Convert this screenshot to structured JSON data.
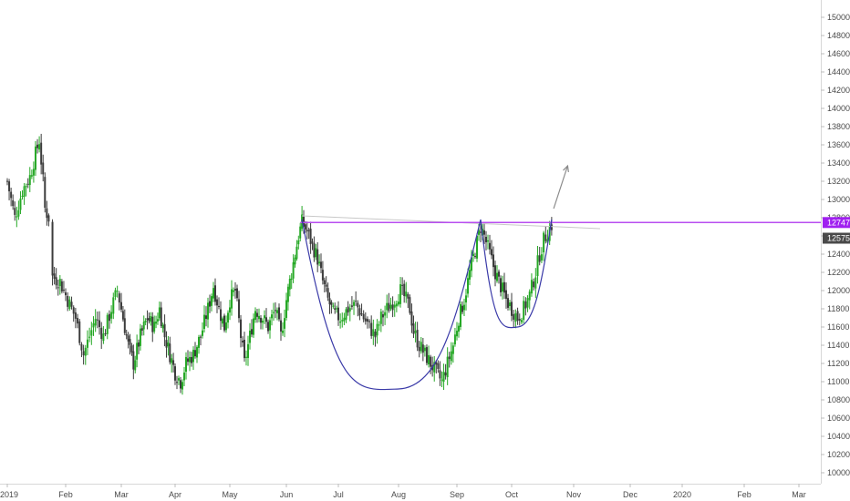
{
  "chart_data": {
    "type": "candlestick",
    "symbol": "",
    "ylim": [
      9800,
      15200
    ],
    "y_ticks": [
      "15000",
      "14800",
      "14600",
      "14400",
      "14200",
      "14000",
      "13800",
      "13600",
      "13400",
      "13200",
      "13000",
      "12800",
      "12600",
      "12400",
      "12200",
      "12000",
      "11800",
      "11600",
      "11400",
      "11200",
      "11000",
      "10800",
      "10600",
      "10400",
      "10200",
      "10000"
    ],
    "x_labels": [
      {
        "label": "2019",
        "t": 0
      },
      {
        "label": "Feb",
        "t": 31
      },
      {
        "label": "Mar",
        "t": 59
      },
      {
        "label": "Apr",
        "t": 90
      },
      {
        "label": "May",
        "t": 120
      },
      {
        "label": "Jun",
        "t": 151
      },
      {
        "label": "Jul",
        "t": 181
      },
      {
        "label": "Aug",
        "t": 212
      },
      {
        "label": "Sep",
        "t": 243
      },
      {
        "label": "Oct",
        "t": 273
      },
      {
        "label": "Nov",
        "t": 304
      },
      {
        "label": "Dec",
        "t": 334
      },
      {
        "label": "2020",
        "t": 365
      },
      {
        "label": "Feb",
        "t": 396
      },
      {
        "label": "Mar",
        "t": 424
      }
    ],
    "x_range": [
      0,
      437
    ],
    "price_path": [
      [
        0,
        13200
      ],
      [
        4,
        12800
      ],
      [
        8,
        13100
      ],
      [
        12,
        13250
      ],
      [
        15,
        13500
      ],
      [
        17,
        13650
      ],
      [
        19,
        13200
      ],
      [
        20,
        12900
      ],
      [
        22,
        12800
      ],
      [
        24,
        12150
      ],
      [
        28,
        12100
      ],
      [
        32,
        11900
      ],
      [
        36,
        11700
      ],
      [
        40,
        11300
      ],
      [
        43,
        11500
      ],
      [
        46,
        11700
      ],
      [
        50,
        11500
      ],
      [
        54,
        11800
      ],
      [
        57,
        12000
      ],
      [
        60,
        11700
      ],
      [
        63,
        11400
      ],
      [
        66,
        11200
      ],
      [
        70,
        11500
      ],
      [
        74,
        11700
      ],
      [
        78,
        11600
      ],
      [
        81,
        11800
      ],
      [
        84,
        11500
      ],
      [
        87,
        11300
      ],
      [
        90,
        11100
      ],
      [
        93,
        11000
      ],
      [
        96,
        11200
      ],
      [
        100,
        11300
      ],
      [
        104,
        11500
      ],
      [
        108,
        11800
      ],
      [
        111,
        12050
      ],
      [
        114,
        11800
      ],
      [
        117,
        11600
      ],
      [
        120,
        11900
      ],
      [
        123,
        12000
      ],
      [
        126,
        11500
      ],
      [
        128,
        11200
      ],
      [
        131,
        11500
      ],
      [
        134,
        11800
      ],
      [
        138,
        11700
      ],
      [
        141,
        11600
      ],
      [
        145,
        11800
      ],
      [
        148,
        11500
      ],
      [
        151,
        11900
      ],
      [
        153,
        12100
      ],
      [
        156,
        12400
      ],
      [
        158,
        12600
      ],
      [
        160,
        12750
      ],
      [
        163,
        12650
      ],
      [
        166,
        12500
      ],
      [
        169,
        12350
      ],
      [
        172,
        12100
      ],
      [
        175,
        11900
      ],
      [
        178,
        11750
      ],
      [
        182,
        11700
      ],
      [
        186,
        11800
      ],
      [
        190,
        11850
      ],
      [
        194,
        11700
      ],
      [
        197,
        11600
      ],
      [
        200,
        11500
      ],
      [
        203,
        11700
      ],
      [
        206,
        11800
      ],
      [
        210,
        11900
      ],
      [
        213,
        12000
      ],
      [
        216,
        11900
      ],
      [
        218,
        11800
      ],
      [
        220,
        11550
      ],
      [
        223,
        11400
      ],
      [
        226,
        11300
      ],
      [
        229,
        11200
      ],
      [
        232,
        11100
      ],
      [
        235,
        11000
      ],
      [
        238,
        11200
      ],
      [
        241,
        11400
      ],
      [
        244,
        11700
      ],
      [
        247,
        11900
      ],
      [
        250,
        12200
      ],
      [
        253,
        12450
      ],
      [
        256,
        12700
      ],
      [
        258,
        12600
      ],
      [
        261,
        12400
      ],
      [
        264,
        12200
      ],
      [
        267,
        12050
      ],
      [
        270,
        11900
      ],
      [
        273,
        11800
      ],
      [
        276,
        11700
      ],
      [
        279,
        11800
      ],
      [
        282,
        11950
      ],
      [
        285,
        12200
      ],
      [
        287,
        12400
      ],
      [
        289,
        12550
      ],
      [
        291,
        12650
      ],
      [
        293,
        12720
      ]
    ],
    "resistance_level": 12747,
    "resistance_label": "12747",
    "last_price": 12575,
    "last_price_label": "12575",
    "trend_line": {
      "t1": 160,
      "p1": 12820,
      "t2": 318,
      "p2": 12680
    },
    "cup": {
      "t_start": 160,
      "t_end": 256,
      "t_bottom": 212,
      "top": 12780,
      "bottom": 10920
    },
    "handle": {
      "t_start": 256,
      "t_end": 293,
      "t_bottom": 276,
      "top": 12780,
      "bottom": 11600
    },
    "arrow": {
      "t1": 294,
      "p1": 12900,
      "t2": 301,
      "p2": 13370
    },
    "colors": {
      "up_candle": "#26a826",
      "down_candle": "#3c3c3c",
      "resistance": "#b84df0",
      "badge_resistance": "#a020f0",
      "badge_last": "#4a4a4a",
      "pattern": "#3a3aa8",
      "trend": "#c8c8c8",
      "arrow": "#8a8a8a",
      "axis_text": "#4a4a4a"
    }
  }
}
